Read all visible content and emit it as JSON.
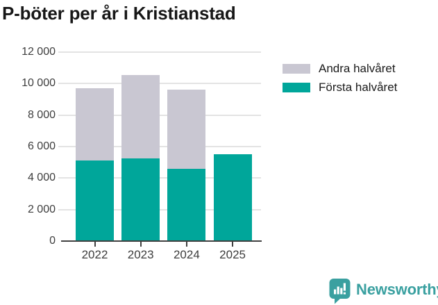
{
  "title": "P-böter per år i Kristianstad",
  "legend": {
    "items": [
      {
        "label": "Andra halvåret",
        "color": "#c9c7d2"
      },
      {
        "label": "Första halvåret",
        "color": "#00a69a"
      }
    ]
  },
  "chart_data": {
    "type": "bar",
    "stacked": true,
    "title": "P-böter per år i Kristianstad",
    "categories": [
      "2022",
      "2023",
      "2024",
      "2025"
    ],
    "series": [
      {
        "name": "Första halvåret",
        "color": "#00a69a",
        "values": [
          5100,
          5250,
          4600,
          5500
        ]
      },
      {
        "name": "Andra halvåret",
        "color": "#c9c7d2",
        "values": [
          4600,
          5300,
          5000,
          0
        ]
      }
    ],
    "totals": [
      9700,
      10550,
      9600,
      5500
    ],
    "xlabel": "",
    "ylabel": "",
    "ylim": [
      0,
      12000
    ],
    "ytick_step": 2000,
    "ytick_labels": [
      "0",
      "2 000",
      "4 000",
      "6 000",
      "8 000",
      "10 000",
      "12 000"
    ],
    "grid": true,
    "legend_position": "top-right"
  },
  "branding": {
    "logo_text": "Newsworthy",
    "logo_color": "#3aa0a0"
  },
  "colors": {
    "background": "#ffffff",
    "title_text": "#171717",
    "axis_text": "#3d3d3d",
    "gridline": "#e3e3e3",
    "axis_line": "#404040",
    "bar_first_half": "#00a69a",
    "bar_second_half": "#c9c7d2",
    "logo": "#3aa0a0"
  }
}
